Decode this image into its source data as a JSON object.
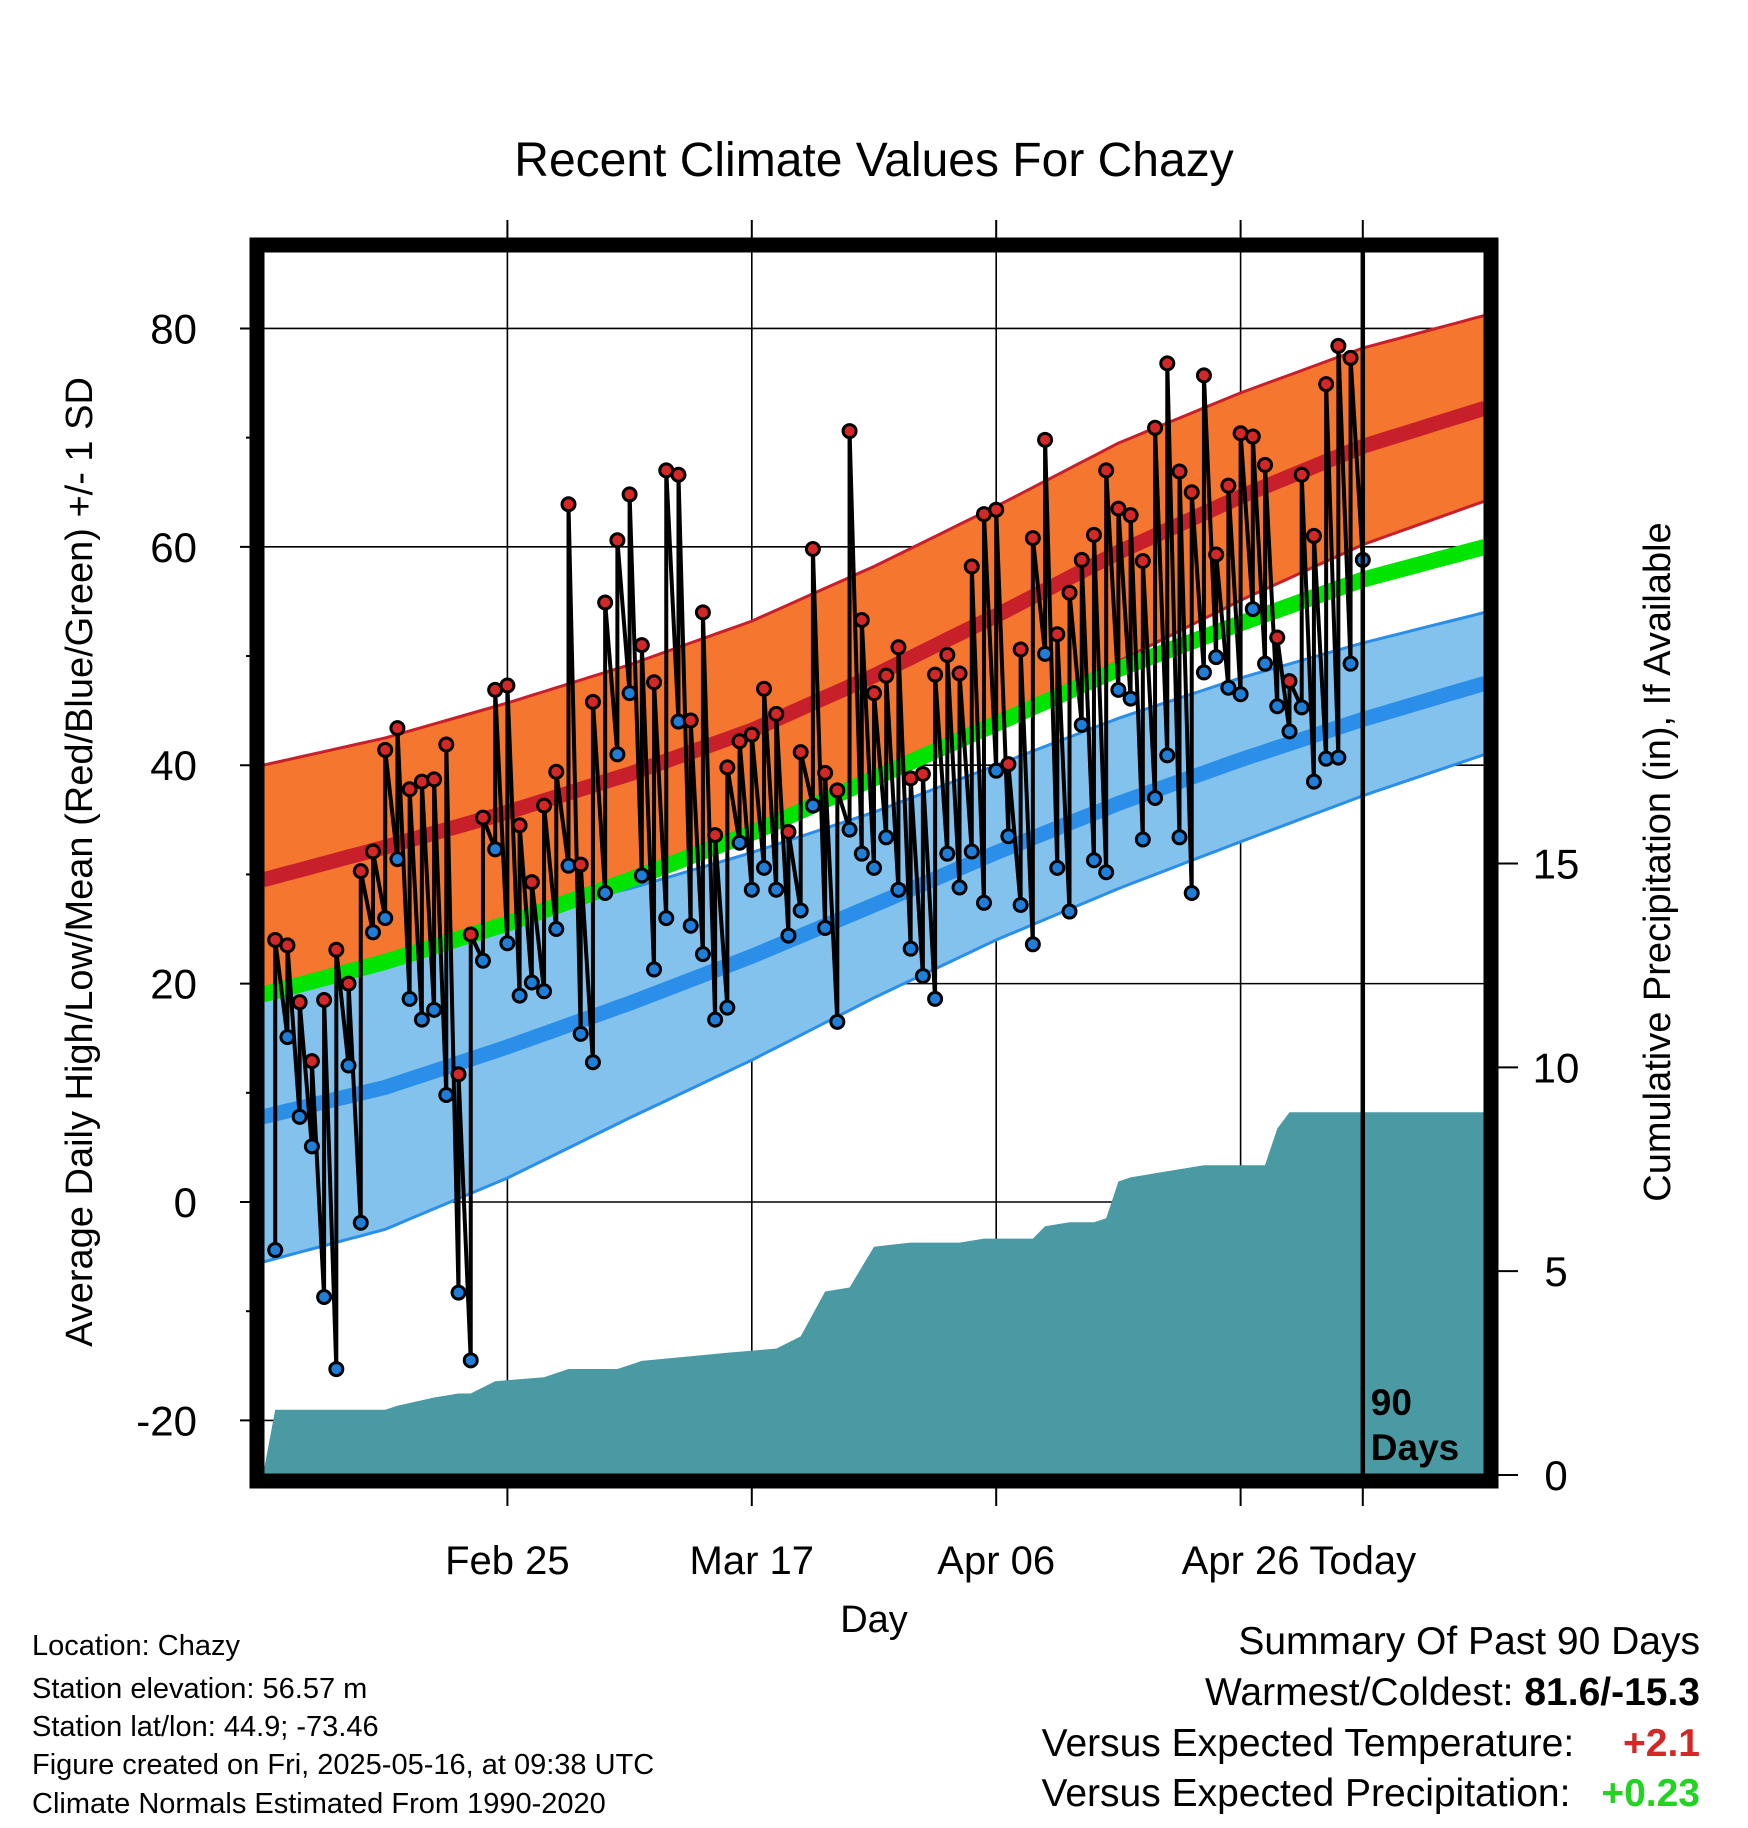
{
  "chart_data": {
    "type": "line",
    "title": "Recent Climate Values For Chazy",
    "xlabel": "Day",
    "ylabel": "Average Daily High/Low/Mean (Red/Blue/Green) +/- 1 SD",
    "y2label": "Cumulative Precipitation (in), If Available",
    "x_tick_labels": [
      "Feb 25",
      "Mar 17",
      "Apr 06",
      "Apr 26",
      "Today"
    ],
    "y_tick_labels": [
      "80",
      "60",
      "40",
      "20",
      "0",
      "-20"
    ],
    "y2_tick_labels": [
      "15",
      "10",
      "5",
      "0"
    ],
    "ylim": [
      -25,
      87
    ],
    "y2lim": [
      0,
      30
    ],
    "x_range_days": [
      -90,
      10
    ],
    "grid": true,
    "today_marker_label": [
      "90",
      "Days"
    ],
    "colors": {
      "high_normal": "#c8202b",
      "high_band": "#f5762f",
      "low_normal": "#2b8ee8",
      "low_band": "#82c2ec",
      "mean_normal": "#00e400",
      "precip": "#4a9aa3",
      "obs_high": "#d42828",
      "obs_low": "#1f7fd8"
    },
    "normals": {
      "day": [
        -90,
        -80,
        -70,
        -60,
        -50,
        -40,
        -30,
        -20,
        -10,
        0,
        10
      ],
      "high_mean": [
        29.5,
        32.5,
        35.7,
        39.2,
        43.2,
        48.2,
        53.7,
        59.5,
        64.6,
        69.2,
        72.7
      ],
      "high_sd": [
        10.5,
        10,
        10,
        10,
        10,
        10,
        10,
        10,
        9.5,
        9,
        8.5
      ],
      "low_mean": [
        7.8,
        10.5,
        14.2,
        18.2,
        22.5,
        27.2,
        32,
        36.5,
        40.5,
        44.2,
        47.5
      ],
      "low_sd": [
        13.3,
        13,
        12,
        10.5,
        9.5,
        8.5,
        8,
        7.8,
        7.5,
        7,
        6.5
      ],
      "mean": [
        19,
        22,
        25.5,
        29.5,
        33.8,
        38.8,
        43.8,
        48.8,
        53,
        57,
        60
      ]
    },
    "series": [
      {
        "name": "Daily High",
        "x": [
          -89,
          -88,
          -87,
          -86,
          -85,
          -84,
          -83,
          -82,
          -81,
          -80,
          -79,
          -78,
          -77,
          -76,
          -75,
          -74,
          -73,
          -72,
          -71,
          -70,
          -69,
          -68,
          -67,
          -66,
          -65,
          -64,
          -63,
          -62,
          -61,
          -60,
          -59,
          -58,
          -57,
          -56,
          -55,
          -54,
          -53,
          -52,
          -51,
          -50,
          -49,
          -48,
          -47,
          -46,
          -45,
          -44,
          -43,
          -42,
          -41,
          -40,
          -39,
          -38,
          -37,
          -36,
          -35,
          -34,
          -33,
          -32,
          -31,
          -30,
          -29,
          -28,
          -27,
          -26,
          -25,
          -24,
          -23,
          -22,
          -21,
          -20,
          -19,
          -18,
          -17,
          -16,
          -15,
          -14,
          -13,
          -12,
          -11,
          -10,
          -9,
          -8,
          -7,
          -6,
          -5,
          -4,
          -3,
          -2,
          -1
        ],
        "values": [
          24.0,
          23.5,
          18.3,
          12.9,
          18.5,
          23.1,
          20.0,
          30.3,
          32.1,
          41.4,
          43.4,
          37.8,
          38.5,
          38.7,
          41.9,
          11.7,
          24.5,
          35.2,
          46.9,
          47.3,
          34.5,
          29.3,
          36.3,
          39.4,
          63.9,
          30.9,
          45.8,
          54.9,
          60.6,
          64.8,
          51.0,
          47.6,
          67.0,
          66.6,
          44.1,
          54.0,
          33.6,
          39.8,
          42.2,
          42.8,
          47.0,
          44.7,
          33.9,
          41.2,
          59.8,
          39.3,
          37.7,
          70.6,
          53.3,
          46.6,
          48.2,
          50.8,
          38.8,
          39.2,
          48.3,
          50.1,
          48.4,
          58.2,
          63.0,
          63.4,
          40.1,
          50.6,
          60.8,
          69.8,
          52.0,
          55.8,
          58.8,
          61.1,
          67.0,
          63.5,
          62.9,
          58.7,
          70.9,
          76.8,
          66.9,
          65.0,
          75.7,
          59.3,
          65.6,
          70.4,
          70.1,
          67.5,
          51.7,
          47.7,
          66.6,
          61.0,
          74.9,
          78.4,
          77.3
        ]
      },
      {
        "name": "Daily Low",
        "x": [
          -89,
          -88,
          -87,
          -86,
          -85,
          -84,
          -83,
          -82,
          -81,
          -80,
          -79,
          -78,
          -77,
          -76,
          -75,
          -74,
          -73,
          -72,
          -71,
          -70,
          -69,
          -68,
          -67,
          -66,
          -65,
          -64,
          -63,
          -62,
          -61,
          -60,
          -59,
          -58,
          -57,
          -56,
          -55,
          -54,
          -53,
          -52,
          -51,
          -50,
          -49,
          -48,
          -47,
          -46,
          -45,
          -44,
          -43,
          -42,
          -41,
          -40,
          -39,
          -38,
          -37,
          -36,
          -35,
          -34,
          -33,
          -32,
          -31,
          -30,
          -29,
          -28,
          -27,
          -26,
          -25,
          -24,
          -23,
          -22,
          -21,
          -20,
          -19,
          -18,
          -17,
          -16,
          -15,
          -14,
          -13,
          -12,
          -11,
          -10,
          -9,
          -8,
          -7,
          -6,
          -5,
          -4,
          -3,
          -2,
          -1,
          0
        ],
        "values": [
          -4.4,
          15.1,
          7.8,
          5.1,
          -8.7,
          -15.3,
          12.5,
          -1.9,
          24.7,
          26.0,
          31.4,
          18.6,
          16.7,
          17.6,
          9.8,
          -8.3,
          -14.5,
          22.1,
          32.3,
          23.7,
          18.9,
          20.1,
          19.3,
          25.0,
          30.8,
          15.4,
          12.8,
          28.3,
          41.0,
          46.6,
          29.9,
          21.3,
          26.0,
          44.0,
          25.3,
          22.7,
          16.7,
          17.8,
          32.9,
          28.6,
          30.6,
          28.6,
          24.4,
          26.7,
          36.3,
          25.1,
          16.5,
          34.1,
          31.9,
          30.6,
          33.4,
          28.6,
          23.2,
          20.7,
          18.6,
          31.9,
          28.8,
          32.1,
          27.4,
          39.5,
          33.5,
          27.2,
          23.6,
          50.2,
          30.6,
          26.6,
          43.7,
          31.3,
          30.2,
          46.9,
          46.1,
          33.2,
          37.0,
          40.9,
          33.4,
          28.3,
          48.5,
          49.9,
          47.1,
          46.5,
          54.3,
          49.3,
          45.4,
          43.1,
          45.3,
          38.5,
          40.6,
          40.7,
          49.3,
          58.8
        ]
      },
      {
        "name": "Cumulative Precipitation",
        "x": [
          -90,
          -89,
          -88,
          -80,
          -79,
          -76,
          -74,
          -73,
          -71,
          -67,
          -65,
          -61,
          -59,
          -52,
          -48,
          -46,
          -44,
          -42,
          -40,
          -37,
          -33,
          -31,
          -29,
          -27,
          -26,
          -24,
          -22,
          -21,
          -20,
          -19,
          -17,
          -15,
          -13,
          -11,
          -8,
          -7,
          -6,
          -5,
          0,
          10
        ],
        "values": [
          0,
          1.6,
          1.6,
          1.6,
          1.7,
          1.9,
          2.0,
          2.0,
          2.3,
          2.4,
          2.6,
          2.6,
          2.8,
          3.0,
          3.1,
          3.4,
          4.5,
          4.6,
          5.6,
          5.7,
          5.7,
          5.8,
          5.8,
          5.8,
          6.1,
          6.2,
          6.2,
          6.3,
          7.2,
          7.3,
          7.4,
          7.5,
          7.6,
          7.6,
          7.6,
          8.5,
          8.9,
          8.9,
          8.9,
          8.9
        ]
      }
    ]
  },
  "info": {
    "location": "Location: Chazy",
    "elevation": "Station elevation: 56.57 m",
    "latlon": "Station lat/lon: 44.9; -73.46",
    "created": "Figure created on Fri, 2025-05-16, at 09:38 UTC",
    "normals": "Climate Normals Estimated From 1990-2020"
  },
  "summary": {
    "title": "Summary Of Past 90 Days",
    "warm_cold_label": "Warmest/Coldest:",
    "warm_cold_value": "81.6/-15.3",
    "temp_label": "Versus Expected Temperature:",
    "temp_value": "+2.1",
    "temp_color": "#d42828",
    "precip_label": "Versus Expected Precipitation:",
    "precip_value": "+0.23",
    "precip_color": "#22d422"
  }
}
